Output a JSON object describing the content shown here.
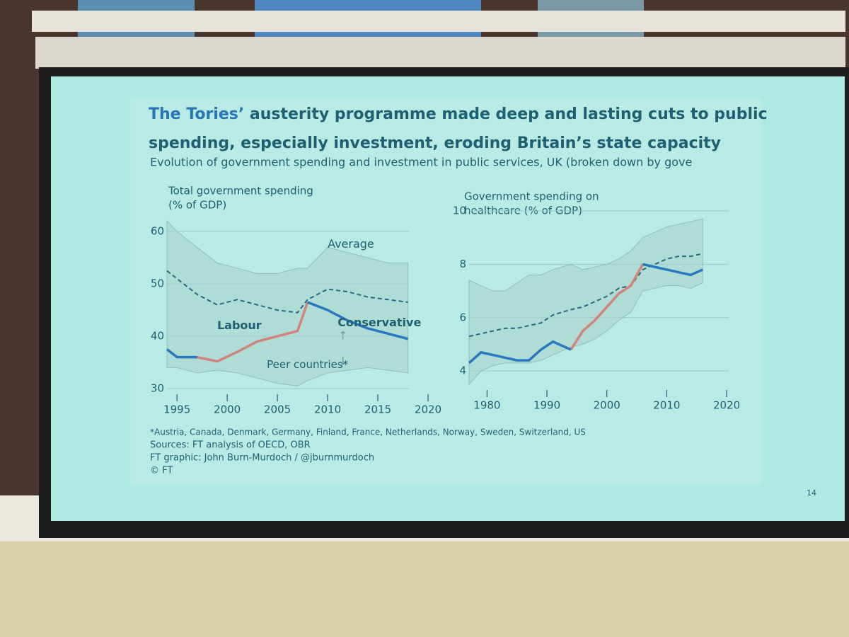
{
  "slide": {
    "title_highlight": "The Tories’",
    "title_lines": [
      "austerity programme made deep and lasting cuts to public",
      "spending, especially investment, eroding Britain’s state capacity"
    ],
    "subtitle": "Evolution of government spending and investment in public services, UK (broken down by gove",
    "footnotes": [
      "*Austria, Canada, Denmark, Germany, Finland, France, Netherlands, Norway, Sweden, Switzerland, US",
      "Sources: FT analysis of OECD, OBR",
      "FT graphic: John Burn-Murdoch / @jburnmurdoch",
      "© FT"
    ],
    "page_number": "14"
  },
  "chart_data": [
    {
      "type": "line",
      "title": [
        "Total government spending",
        "(% of GDP)"
      ],
      "x": [
        1994,
        1995,
        1997,
        1999,
        2001,
        2003,
        2005,
        2007,
        2008,
        2010,
        2012,
        2014,
        2016,
        2018
      ],
      "xlim": [
        1994,
        2020
      ],
      "xticks": [
        1995,
        2000,
        2005,
        2010,
        2015,
        2020
      ],
      "ylim": [
        30,
        63
      ],
      "yticks": [
        30,
        40,
        50,
        60
      ],
      "grid": true,
      "band": {
        "name": "Peer countries*",
        "color": "#a9cfcb",
        "low": [
          34,
          34,
          33,
          33.5,
          33,
          32,
          31,
          30.5,
          31.5,
          33,
          33.5,
          34,
          33.5,
          33
        ],
        "high": [
          62,
          60,
          57,
          54,
          53,
          52,
          52,
          53,
          53,
          57,
          56,
          55,
          54,
          54
        ]
      },
      "series": [
        {
          "name": "Average",
          "color": "#2a6a80",
          "dashed": true,
          "values": [
            52.5,
            51,
            48,
            46,
            47,
            46,
            45,
            44.5,
            47,
            49,
            48.5,
            47.5,
            47,
            46.5
          ]
        },
        {
          "name": "Labour",
          "color": "#d0847a",
          "values": [
            null,
            null,
            36,
            35.2,
            37,
            39,
            40,
            41,
            46.5,
            null,
            null,
            null,
            null,
            null
          ]
        },
        {
          "name": "Conservative",
          "color": "#2878c0",
          "values": [
            37.5,
            36,
            36,
            null,
            null,
            null,
            null,
            null,
            46.5,
            45,
            43,
            41.5,
            40.5,
            39.5
          ]
        }
      ]
    },
    {
      "type": "line",
      "title": [
        "Government spending on",
        "healthcare (% of GDP)"
      ],
      "x": [
        1977,
        1979,
        1981,
        1983,
        1985,
        1987,
        1989,
        1991,
        1994,
        1996,
        1998,
        2000,
        2002,
        2004,
        2006,
        2008,
        2010,
        2012,
        2014,
        2016
      ],
      "xlim": [
        1977,
        2022
      ],
      "xticks": [
        1980,
        1990,
        2000,
        2010,
        2020
      ],
      "ylim": [
        3.5,
        10
      ],
      "yticks": [
        4,
        6,
        8,
        10
      ],
      "grid": true,
      "band": {
        "color": "#a9cfcb",
        "low": [
          3.5,
          4.0,
          4.2,
          4.3,
          4.3,
          4.3,
          4.4,
          4.6,
          4.9,
          5.0,
          5.2,
          5.5,
          5.9,
          6.2,
          7.0,
          7.1,
          7.2,
          7.2,
          7.1,
          7.3
        ],
        "high": [
          7.4,
          7.2,
          7.0,
          7.0,
          7.3,
          7.6,
          7.6,
          7.8,
          8.0,
          7.8,
          7.9,
          8.0,
          8.2,
          8.5,
          9.0,
          9.2,
          9.4,
          9.5,
          9.6,
          9.7
        ]
      },
      "series": [
        {
          "color": "#2a6a80",
          "dashed": true,
          "values": [
            5.3,
            5.4,
            5.5,
            5.6,
            5.6,
            5.7,
            5.8,
            6.1,
            6.3,
            6.4,
            6.6,
            6.8,
            7.1,
            7.2,
            7.8,
            8.0,
            8.2,
            8.3,
            8.3,
            8.4
          ]
        },
        {
          "color": "#d0847a",
          "values": [
            null,
            null,
            null,
            null,
            null,
            null,
            null,
            null,
            4.8,
            5.5,
            5.9,
            6.4,
            6.9,
            7.2,
            8.0,
            null,
            null,
            null,
            null,
            null
          ]
        },
        {
          "color": "#2878c0",
          "values": [
            4.3,
            4.7,
            4.6,
            4.5,
            4.4,
            4.4,
            4.8,
            5.1,
            4.8,
            null,
            null,
            null,
            null,
            null,
            8.0,
            7.9,
            7.8,
            7.7,
            7.6,
            7.8
          ]
        }
      ]
    }
  ]
}
